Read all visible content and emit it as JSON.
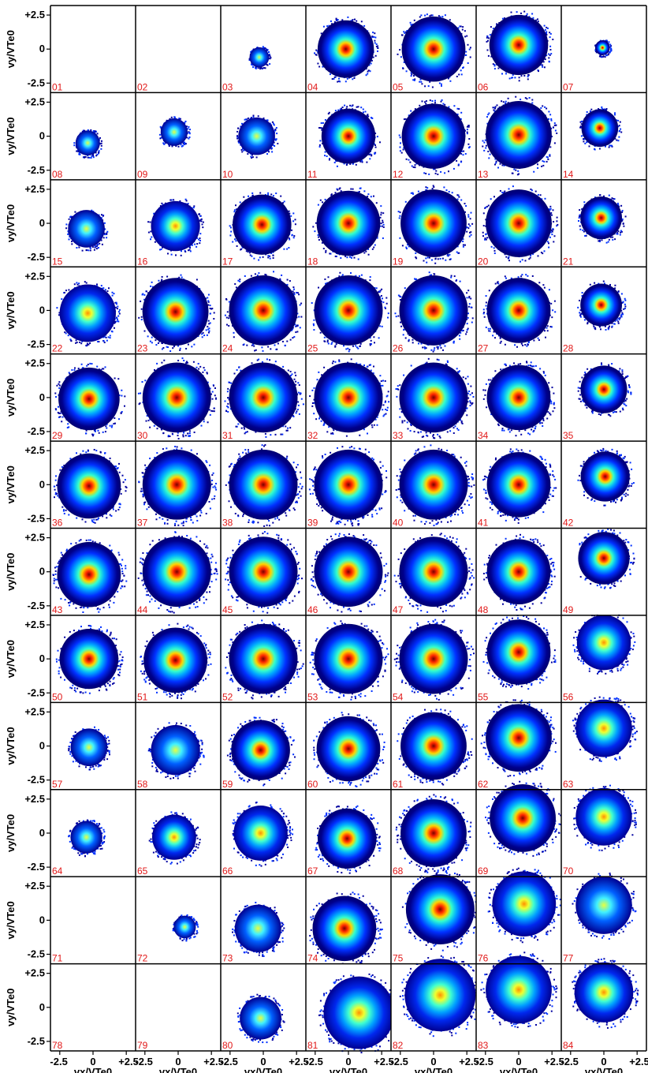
{
  "chart_data": {
    "type": "heatmap",
    "title": "",
    "xlabel": "vx/VTe0",
    "ylabel": "vy/VTe0",
    "xlim": [
      -3.2,
      3.2
    ],
    "ylim": [
      -3.2,
      3.2
    ],
    "x_ticks": [
      "-2.5",
      "0",
      "+2.5"
    ],
    "y_ticks": [
      "+2.5",
      "0",
      "-2.5"
    ],
    "grid": false,
    "colormap": [
      "#000080",
      "#0000ff",
      "#00c8ff",
      "#ffff00",
      "#ff4000",
      "#800000"
    ],
    "columns": 7,
    "rows": 12,
    "panels": [
      {
        "label": "01",
        "cx": 0,
        "cy": 0,
        "r": 0,
        "peak": 0
      },
      {
        "label": "02",
        "cx": 0,
        "cy": 0,
        "r": 0,
        "peak": 0
      },
      {
        "label": "03",
        "cx": -0.3,
        "cy": -0.6,
        "r": 0.8,
        "peak": 0.5
      },
      {
        "label": "04",
        "cx": -0.2,
        "cy": 0,
        "r": 2.3,
        "peak": 0.95
      },
      {
        "label": "05",
        "cx": 0,
        "cy": 0,
        "r": 2.6,
        "peak": 1
      },
      {
        "label": "06",
        "cx": 0,
        "cy": 0.3,
        "r": 2.4,
        "peak": 1
      },
      {
        "label": "07",
        "cx": -0.1,
        "cy": 0.1,
        "r": 0.6,
        "peak": 0.9
      },
      {
        "label": "08",
        "cx": -0.4,
        "cy": -0.5,
        "r": 1.0,
        "peak": 0.6
      },
      {
        "label": "09",
        "cx": -0.3,
        "cy": 0.3,
        "r": 1.1,
        "peak": 0.6
      },
      {
        "label": "10",
        "cx": -0.5,
        "cy": 0,
        "r": 1.5,
        "peak": 0.6
      },
      {
        "label": "11",
        "cx": 0,
        "cy": 0,
        "r": 2.2,
        "peak": 0.9
      },
      {
        "label": "12",
        "cx": 0,
        "cy": 0,
        "r": 2.6,
        "peak": 1
      },
      {
        "label": "13",
        "cx": 0,
        "cy": 0.1,
        "r": 2.7,
        "peak": 1
      },
      {
        "label": "14",
        "cx": -0.3,
        "cy": 0.6,
        "r": 1.5,
        "peak": 1
      },
      {
        "label": "15",
        "cx": -0.5,
        "cy": -0.4,
        "r": 1.5,
        "peak": 0.6
      },
      {
        "label": "16",
        "cx": -0.2,
        "cy": -0.2,
        "r": 2.0,
        "peak": 0.85
      },
      {
        "label": "17",
        "cx": -0.1,
        "cy": -0.1,
        "r": 2.4,
        "peak": 0.95
      },
      {
        "label": "18",
        "cx": 0,
        "cy": 0,
        "r": 2.6,
        "peak": 1
      },
      {
        "label": "19",
        "cx": 0,
        "cy": 0,
        "r": 2.7,
        "peak": 1
      },
      {
        "label": "20",
        "cx": 0,
        "cy": 0,
        "r": 2.7,
        "peak": 1
      },
      {
        "label": "21",
        "cx": -0.2,
        "cy": 0.4,
        "r": 1.7,
        "peak": 1
      },
      {
        "label": "22",
        "cx": -0.4,
        "cy": -0.2,
        "r": 2.3,
        "peak": 0.85
      },
      {
        "label": "23",
        "cx": -0.2,
        "cy": -0.1,
        "r": 2.7,
        "peak": 1
      },
      {
        "label": "24",
        "cx": 0,
        "cy": 0,
        "r": 2.8,
        "peak": 1
      },
      {
        "label": "25",
        "cx": 0,
        "cy": 0,
        "r": 2.8,
        "peak": 1
      },
      {
        "label": "26",
        "cx": 0,
        "cy": 0,
        "r": 2.8,
        "peak": 1
      },
      {
        "label": "27",
        "cx": 0,
        "cy": 0,
        "r": 2.6,
        "peak": 1
      },
      {
        "label": "28",
        "cx": -0.2,
        "cy": 0.4,
        "r": 1.7,
        "peak": 1
      },
      {
        "label": "29",
        "cx": -0.3,
        "cy": -0.1,
        "r": 2.5,
        "peak": 0.95
      },
      {
        "label": "30",
        "cx": -0.1,
        "cy": 0,
        "r": 2.8,
        "peak": 1
      },
      {
        "label": "31",
        "cx": 0,
        "cy": 0,
        "r": 2.8,
        "peak": 1
      },
      {
        "label": "32",
        "cx": 0,
        "cy": 0,
        "r": 2.8,
        "peak": 1
      },
      {
        "label": "33",
        "cx": 0,
        "cy": 0,
        "r": 2.8,
        "peak": 1
      },
      {
        "label": "34",
        "cx": 0,
        "cy": 0,
        "r": 2.6,
        "peak": 1
      },
      {
        "label": "35",
        "cx": 0,
        "cy": 0.6,
        "r": 1.9,
        "peak": 1
      },
      {
        "label": "36",
        "cx": -0.3,
        "cy": -0.1,
        "r": 2.6,
        "peak": 0.95
      },
      {
        "label": "37",
        "cx": -0.1,
        "cy": 0,
        "r": 2.8,
        "peak": 1
      },
      {
        "label": "38",
        "cx": 0,
        "cy": 0,
        "r": 2.8,
        "peak": 1
      },
      {
        "label": "39",
        "cx": 0,
        "cy": 0,
        "r": 2.8,
        "peak": 1
      },
      {
        "label": "40",
        "cx": 0,
        "cy": 0,
        "r": 2.8,
        "peak": 1
      },
      {
        "label": "41",
        "cx": 0,
        "cy": 0,
        "r": 2.6,
        "peak": 1
      },
      {
        "label": "42",
        "cx": 0.1,
        "cy": 0.6,
        "r": 2.0,
        "peak": 1
      },
      {
        "label": "43",
        "cx": -0.3,
        "cy": -0.2,
        "r": 2.6,
        "peak": 0.95
      },
      {
        "label": "44",
        "cx": -0.1,
        "cy": 0,
        "r": 2.8,
        "peak": 1
      },
      {
        "label": "45",
        "cx": 0,
        "cy": 0,
        "r": 2.8,
        "peak": 1
      },
      {
        "label": "46",
        "cx": 0,
        "cy": 0,
        "r": 2.8,
        "peak": 1
      },
      {
        "label": "47",
        "cx": 0,
        "cy": 0,
        "r": 2.8,
        "peak": 1
      },
      {
        "label": "48",
        "cx": 0,
        "cy": 0,
        "r": 2.6,
        "peak": 1
      },
      {
        "label": "49",
        "cx": 0,
        "cy": 1.0,
        "r": 2.1,
        "peak": 1
      },
      {
        "label": "50",
        "cx": -0.3,
        "cy": 0,
        "r": 2.4,
        "peak": 0.9
      },
      {
        "label": "51",
        "cx": -0.2,
        "cy": -0.1,
        "r": 2.6,
        "peak": 1
      },
      {
        "label": "52",
        "cx": 0,
        "cy": 0,
        "r": 2.8,
        "peak": 1
      },
      {
        "label": "53",
        "cx": 0,
        "cy": 0,
        "r": 2.8,
        "peak": 1
      },
      {
        "label": "54",
        "cx": 0,
        "cy": 0,
        "r": 2.8,
        "peak": 1
      },
      {
        "label": "55",
        "cx": 0,
        "cy": 0.5,
        "r": 2.6,
        "peak": 1
      },
      {
        "label": "56",
        "cx": 0,
        "cy": 1.2,
        "r": 2.2,
        "peak": 0.85
      },
      {
        "label": "57",
        "cx": -0.3,
        "cy": -0.1,
        "r": 1.5,
        "peak": 0.35
      },
      {
        "label": "58",
        "cx": -0.2,
        "cy": -0.3,
        "r": 2.0,
        "peak": 0.6
      },
      {
        "label": "59",
        "cx": -0.2,
        "cy": -0.3,
        "r": 2.4,
        "peak": 0.9
      },
      {
        "label": "60",
        "cx": 0,
        "cy": -0.2,
        "r": 2.6,
        "peak": 1
      },
      {
        "label": "61",
        "cx": 0,
        "cy": 0,
        "r": 2.7,
        "peak": 1
      },
      {
        "label": "62",
        "cx": 0,
        "cy": 0.6,
        "r": 2.7,
        "peak": 1
      },
      {
        "label": "63",
        "cx": 0,
        "cy": 1.3,
        "r": 2.3,
        "peak": 0.8
      },
      {
        "label": "64",
        "cx": -0.5,
        "cy": -0.3,
        "r": 1.3,
        "peak": 0.4
      },
      {
        "label": "65",
        "cx": -0.3,
        "cy": -0.3,
        "r": 1.8,
        "peak": 0.7
      },
      {
        "label": "66",
        "cx": -0.2,
        "cy": 0,
        "r": 2.2,
        "peak": 0.75
      },
      {
        "label": "67",
        "cx": -0.1,
        "cy": -0.4,
        "r": 2.4,
        "peak": 0.95
      },
      {
        "label": "68",
        "cx": 0,
        "cy": 0,
        "r": 2.7,
        "peak": 1
      },
      {
        "label": "69",
        "cx": 0.3,
        "cy": 1.1,
        "r": 2.7,
        "peak": 0.9
      },
      {
        "label": "70",
        "cx": 0,
        "cy": 1.2,
        "r": 2.3,
        "peak": 0.75
      },
      {
        "label": "71",
        "cx": 0,
        "cy": 0,
        "r": 0,
        "peak": 0
      },
      {
        "label": "72",
        "cx": 0.5,
        "cy": -0.5,
        "r": 0.9,
        "peak": 0.4
      },
      {
        "label": "73",
        "cx": -0.4,
        "cy": -0.6,
        "r": 1.9,
        "peak": 0.6
      },
      {
        "label": "74",
        "cx": -0.3,
        "cy": -0.6,
        "r": 2.6,
        "peak": 0.95
      },
      {
        "label": "75",
        "cx": 0.5,
        "cy": 0.8,
        "r": 2.8,
        "peak": 0.9
      },
      {
        "label": "76",
        "cx": 0.4,
        "cy": 1.2,
        "r": 2.6,
        "peak": 0.8
      },
      {
        "label": "77",
        "cx": 0,
        "cy": 1.1,
        "r": 2.3,
        "peak": 0.6
      },
      {
        "label": "78",
        "cx": 0,
        "cy": 0,
        "r": 0,
        "peak": 0
      },
      {
        "label": "79",
        "cx": 0,
        "cy": 0,
        "r": 0,
        "peak": 0
      },
      {
        "label": "80",
        "cx": -0.2,
        "cy": -0.8,
        "r": 1.7,
        "peak": 0.6
      },
      {
        "label": "81",
        "cx": 0.8,
        "cy": -0.4,
        "r": 2.9,
        "peak": 0.85
      },
      {
        "label": "82",
        "cx": 0.5,
        "cy": 0.9,
        "r": 2.9,
        "peak": 0.8
      },
      {
        "label": "83",
        "cx": 0,
        "cy": 1.3,
        "r": 2.7,
        "peak": 0.8
      },
      {
        "label": "84",
        "cx": 0,
        "cy": 1.1,
        "r": 2.4,
        "peak": 0.7
      }
    ]
  }
}
